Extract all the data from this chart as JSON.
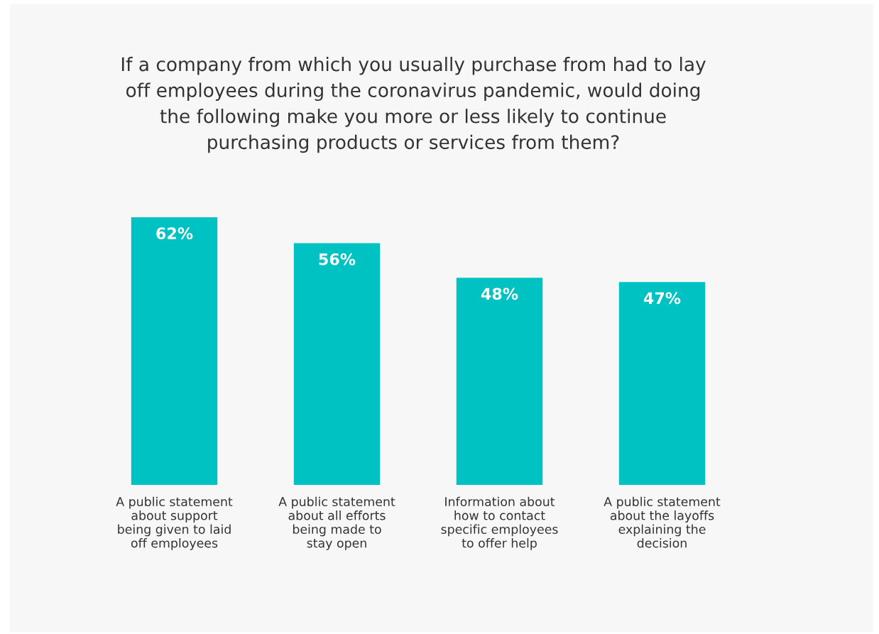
{
  "chart_data": {
    "type": "bar",
    "title": "If a company from which you usually purchase from had to lay\noff employees during the coronavirus pandemic, would doing\nthe following make you more or less likely to continue\npurchasing products or services from them?",
    "categories": [
      "A public statement\nabout support\nbeing given to laid\noff employees",
      "A public statement\nabout all efforts\nbeing made to\nstay open",
      "Information about\nhow to contact\nspecific employees\nto offer help",
      "A public statement\nabout the layoffs\nexplaining the\ndecision"
    ],
    "values": [
      62,
      56,
      48,
      47
    ],
    "value_labels": [
      "62%",
      "56%",
      "48%",
      "47%"
    ],
    "color": "#00c2c2",
    "tick_labels": "x"
  }
}
